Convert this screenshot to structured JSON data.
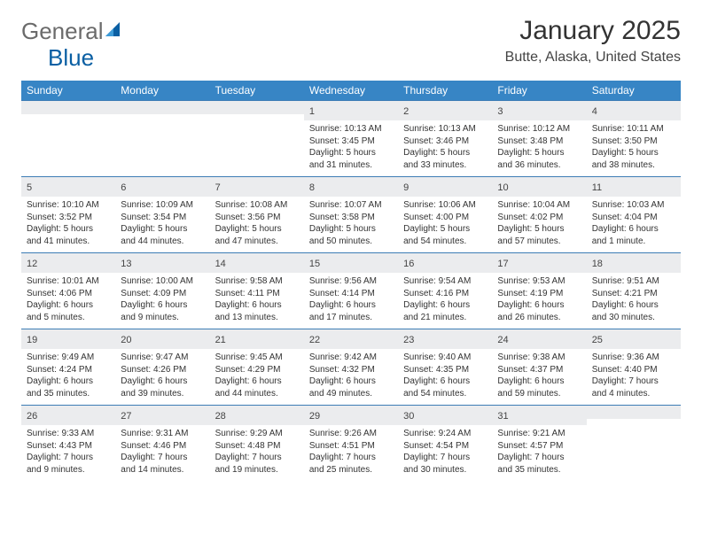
{
  "logo": {
    "text1": "General",
    "text2": "Blue"
  },
  "title": "January 2025",
  "location": "Butte, Alaska, United States",
  "colors": {
    "header_bg": "#3785c5",
    "header_text": "#ffffff",
    "daynum_bg": "#ebecee",
    "row_border": "#3d7db5",
    "logo_gray": "#6b6b6b",
    "logo_blue": "#0a5fa3"
  },
  "day_headers": [
    "Sunday",
    "Monday",
    "Tuesday",
    "Wednesday",
    "Thursday",
    "Friday",
    "Saturday"
  ],
  "weeks": [
    [
      {
        "day": "",
        "sunrise": "",
        "sunset": "",
        "daylight": ""
      },
      {
        "day": "",
        "sunrise": "",
        "sunset": "",
        "daylight": ""
      },
      {
        "day": "",
        "sunrise": "",
        "sunset": "",
        "daylight": ""
      },
      {
        "day": "1",
        "sunrise": "Sunrise: 10:13 AM",
        "sunset": "Sunset: 3:45 PM",
        "daylight": "Daylight: 5 hours and 31 minutes."
      },
      {
        "day": "2",
        "sunrise": "Sunrise: 10:13 AM",
        "sunset": "Sunset: 3:46 PM",
        "daylight": "Daylight: 5 hours and 33 minutes."
      },
      {
        "day": "3",
        "sunrise": "Sunrise: 10:12 AM",
        "sunset": "Sunset: 3:48 PM",
        "daylight": "Daylight: 5 hours and 36 minutes."
      },
      {
        "day": "4",
        "sunrise": "Sunrise: 10:11 AM",
        "sunset": "Sunset: 3:50 PM",
        "daylight": "Daylight: 5 hours and 38 minutes."
      }
    ],
    [
      {
        "day": "5",
        "sunrise": "Sunrise: 10:10 AM",
        "sunset": "Sunset: 3:52 PM",
        "daylight": "Daylight: 5 hours and 41 minutes."
      },
      {
        "day": "6",
        "sunrise": "Sunrise: 10:09 AM",
        "sunset": "Sunset: 3:54 PM",
        "daylight": "Daylight: 5 hours and 44 minutes."
      },
      {
        "day": "7",
        "sunrise": "Sunrise: 10:08 AM",
        "sunset": "Sunset: 3:56 PM",
        "daylight": "Daylight: 5 hours and 47 minutes."
      },
      {
        "day": "8",
        "sunrise": "Sunrise: 10:07 AM",
        "sunset": "Sunset: 3:58 PM",
        "daylight": "Daylight: 5 hours and 50 minutes."
      },
      {
        "day": "9",
        "sunrise": "Sunrise: 10:06 AM",
        "sunset": "Sunset: 4:00 PM",
        "daylight": "Daylight: 5 hours and 54 minutes."
      },
      {
        "day": "10",
        "sunrise": "Sunrise: 10:04 AM",
        "sunset": "Sunset: 4:02 PM",
        "daylight": "Daylight: 5 hours and 57 minutes."
      },
      {
        "day": "11",
        "sunrise": "Sunrise: 10:03 AM",
        "sunset": "Sunset: 4:04 PM",
        "daylight": "Daylight: 6 hours and 1 minute."
      }
    ],
    [
      {
        "day": "12",
        "sunrise": "Sunrise: 10:01 AM",
        "sunset": "Sunset: 4:06 PM",
        "daylight": "Daylight: 6 hours and 5 minutes."
      },
      {
        "day": "13",
        "sunrise": "Sunrise: 10:00 AM",
        "sunset": "Sunset: 4:09 PM",
        "daylight": "Daylight: 6 hours and 9 minutes."
      },
      {
        "day": "14",
        "sunrise": "Sunrise: 9:58 AM",
        "sunset": "Sunset: 4:11 PM",
        "daylight": "Daylight: 6 hours and 13 minutes."
      },
      {
        "day": "15",
        "sunrise": "Sunrise: 9:56 AM",
        "sunset": "Sunset: 4:14 PM",
        "daylight": "Daylight: 6 hours and 17 minutes."
      },
      {
        "day": "16",
        "sunrise": "Sunrise: 9:54 AM",
        "sunset": "Sunset: 4:16 PM",
        "daylight": "Daylight: 6 hours and 21 minutes."
      },
      {
        "day": "17",
        "sunrise": "Sunrise: 9:53 AM",
        "sunset": "Sunset: 4:19 PM",
        "daylight": "Daylight: 6 hours and 26 minutes."
      },
      {
        "day": "18",
        "sunrise": "Sunrise: 9:51 AM",
        "sunset": "Sunset: 4:21 PM",
        "daylight": "Daylight: 6 hours and 30 minutes."
      }
    ],
    [
      {
        "day": "19",
        "sunrise": "Sunrise: 9:49 AM",
        "sunset": "Sunset: 4:24 PM",
        "daylight": "Daylight: 6 hours and 35 minutes."
      },
      {
        "day": "20",
        "sunrise": "Sunrise: 9:47 AM",
        "sunset": "Sunset: 4:26 PM",
        "daylight": "Daylight: 6 hours and 39 minutes."
      },
      {
        "day": "21",
        "sunrise": "Sunrise: 9:45 AM",
        "sunset": "Sunset: 4:29 PM",
        "daylight": "Daylight: 6 hours and 44 minutes."
      },
      {
        "day": "22",
        "sunrise": "Sunrise: 9:42 AM",
        "sunset": "Sunset: 4:32 PM",
        "daylight": "Daylight: 6 hours and 49 minutes."
      },
      {
        "day": "23",
        "sunrise": "Sunrise: 9:40 AM",
        "sunset": "Sunset: 4:35 PM",
        "daylight": "Daylight: 6 hours and 54 minutes."
      },
      {
        "day": "24",
        "sunrise": "Sunrise: 9:38 AM",
        "sunset": "Sunset: 4:37 PM",
        "daylight": "Daylight: 6 hours and 59 minutes."
      },
      {
        "day": "25",
        "sunrise": "Sunrise: 9:36 AM",
        "sunset": "Sunset: 4:40 PM",
        "daylight": "Daylight: 7 hours and 4 minutes."
      }
    ],
    [
      {
        "day": "26",
        "sunrise": "Sunrise: 9:33 AM",
        "sunset": "Sunset: 4:43 PM",
        "daylight": "Daylight: 7 hours and 9 minutes."
      },
      {
        "day": "27",
        "sunrise": "Sunrise: 9:31 AM",
        "sunset": "Sunset: 4:46 PM",
        "daylight": "Daylight: 7 hours and 14 minutes."
      },
      {
        "day": "28",
        "sunrise": "Sunrise: 9:29 AM",
        "sunset": "Sunset: 4:48 PM",
        "daylight": "Daylight: 7 hours and 19 minutes."
      },
      {
        "day": "29",
        "sunrise": "Sunrise: 9:26 AM",
        "sunset": "Sunset: 4:51 PM",
        "daylight": "Daylight: 7 hours and 25 minutes."
      },
      {
        "day": "30",
        "sunrise": "Sunrise: 9:24 AM",
        "sunset": "Sunset: 4:54 PM",
        "daylight": "Daylight: 7 hours and 30 minutes."
      },
      {
        "day": "31",
        "sunrise": "Sunrise: 9:21 AM",
        "sunset": "Sunset: 4:57 PM",
        "daylight": "Daylight: 7 hours and 35 minutes."
      },
      {
        "day": "",
        "sunrise": "",
        "sunset": "",
        "daylight": ""
      }
    ]
  ]
}
